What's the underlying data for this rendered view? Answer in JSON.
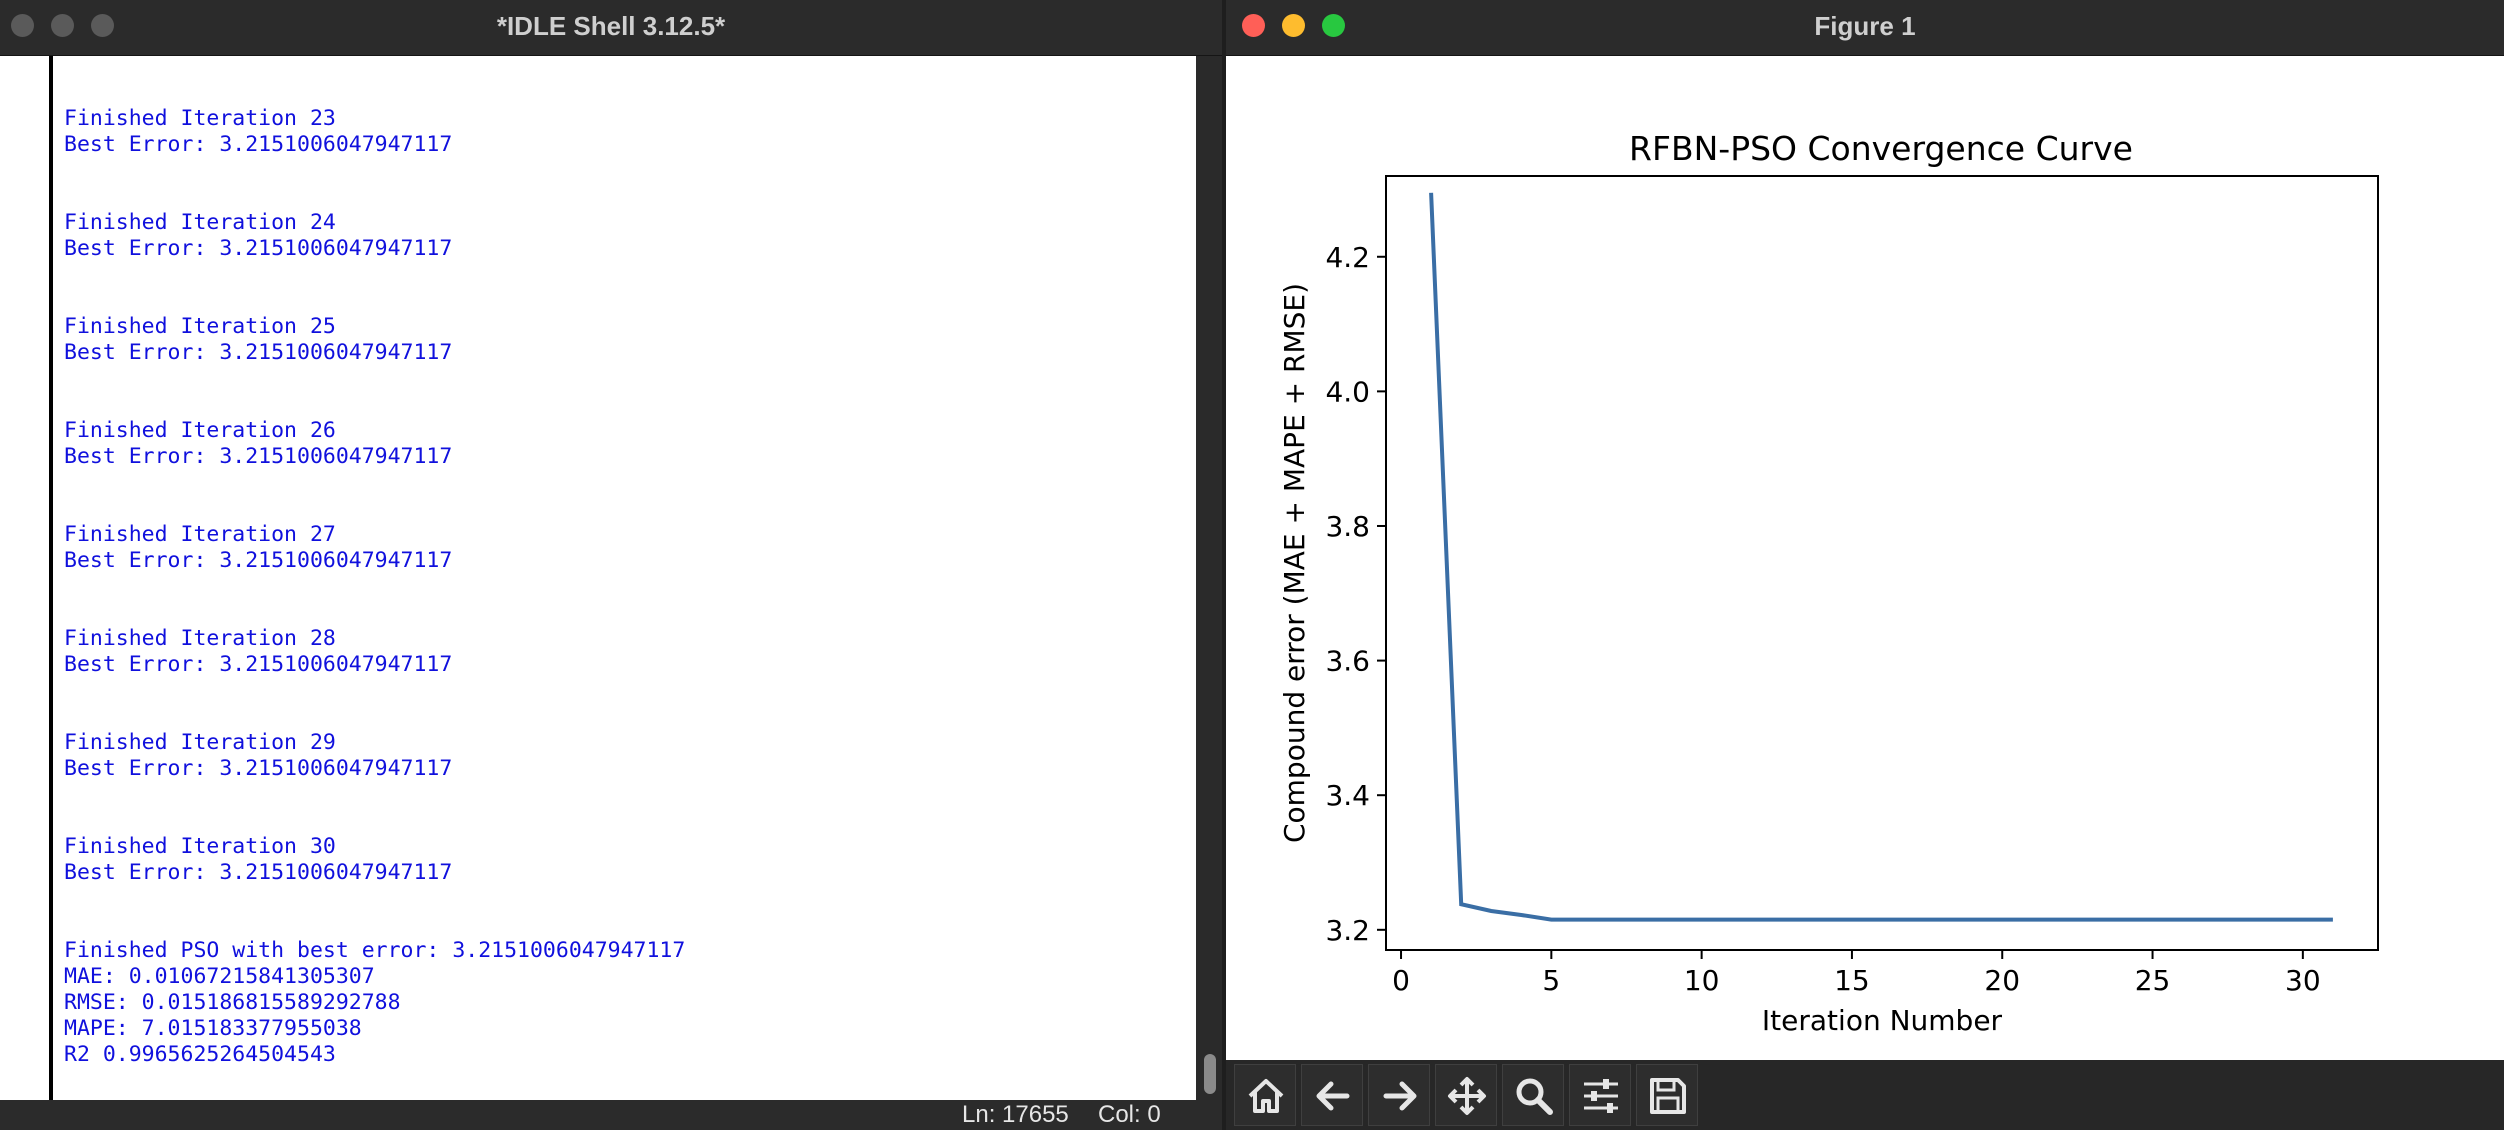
{
  "idle": {
    "title": "*IDLE Shell 3.12.5*",
    "output_lines": [
      "Finished Iteration 23",
      "Best Error: 3.2151006047947117",
      "",
      "",
      "Finished Iteration 24",
      "Best Error: 3.2151006047947117",
      "",
      "",
      "Finished Iteration 25",
      "Best Error: 3.2151006047947117",
      "",
      "",
      "Finished Iteration 26",
      "Best Error: 3.2151006047947117",
      "",
      "",
      "Finished Iteration 27",
      "Best Error: 3.2151006047947117",
      "",
      "",
      "Finished Iteration 28",
      "Best Error: 3.2151006047947117",
      "",
      "",
      "Finished Iteration 29",
      "Best Error: 3.2151006047947117",
      "",
      "",
      "Finished Iteration 30",
      "Best Error: 3.2151006047947117",
      "",
      "",
      "Finished PSO with best error: 3.2151006047947117",
      "MAE: 0.01067215841305307",
      "RMSE: 0.015186815589292788",
      "MAPE: 7.015183377955038",
      "R2 0.9965625264504543"
    ],
    "status": {
      "line": "Ln: 17655",
      "col": "Col: 0"
    },
    "output_color": "#1010dd"
  },
  "figure": {
    "title": "Figure 1",
    "toolbar": [
      {
        "name": "home-icon"
      },
      {
        "name": "back-arrow-icon"
      },
      {
        "name": "forward-arrow-icon"
      },
      {
        "name": "pan-icon"
      },
      {
        "name": "zoom-icon"
      },
      {
        "name": "subplots-config-icon"
      },
      {
        "name": "save-icon"
      }
    ]
  },
  "chart_data": {
    "type": "line",
    "title": "RFBN-PSO Convergence Curve",
    "xlabel": "Iteration Number",
    "ylabel": "Compound error (MAE + MAPE + RMSE)",
    "xlim": [
      -0.5,
      32.5
    ],
    "ylim": [
      3.17,
      4.32
    ],
    "xticks": [
      0,
      5,
      10,
      15,
      20,
      25,
      30
    ],
    "yticks": [
      3.2,
      3.4,
      3.6,
      3.8,
      4.0,
      4.2
    ],
    "ytick_labels": [
      "3.2",
      "3.4",
      "3.6",
      "3.8",
      "4.0",
      "4.2"
    ],
    "grid": false,
    "line_color": "#3a6ea5",
    "series": [
      {
        "x": [
          1,
          2,
          3,
          4,
          5,
          6,
          7,
          8,
          9,
          10,
          11,
          12,
          13,
          14,
          15,
          16,
          17,
          18,
          19,
          20,
          21,
          22,
          23,
          24,
          25,
          26,
          27,
          28,
          29,
          30,
          31
        ],
        "y": [
          4.295,
          3.238,
          3.228,
          3.222,
          3.2151,
          3.2151,
          3.2151,
          3.2151,
          3.2151,
          3.2151,
          3.2151,
          3.2151,
          3.2151,
          3.2151,
          3.2151,
          3.2151,
          3.2151,
          3.2151,
          3.2151,
          3.2151,
          3.2151,
          3.2151,
          3.2151,
          3.2151,
          3.2151,
          3.2151,
          3.2151,
          3.2151,
          3.2151,
          3.2151,
          3.2151
        ]
      }
    ]
  }
}
